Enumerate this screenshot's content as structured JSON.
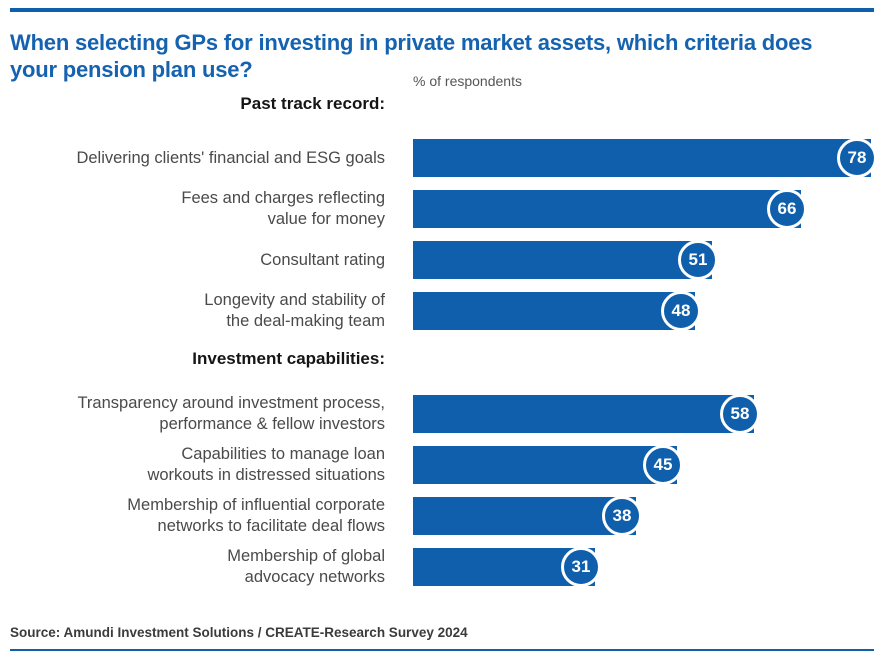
{
  "colors": {
    "accent_blue": "#0f5fac",
    "title_blue": "#1562b0",
    "label_gray": "#4a4a4a",
    "heading_black": "#151515",
    "badge_text": "#ffffff",
    "badge_ring": "#ffffff"
  },
  "chart_data": {
    "type": "bar",
    "orientation": "horizontal",
    "title": "When selecting GPs for investing in private market assets, which criteria does\nyour pension plan use?",
    "value_note": "% of respondents",
    "xlim": [
      0,
      80
    ],
    "grid": false,
    "legend": false,
    "bar_color": "#0f5fac",
    "groups": [
      {
        "heading": "Past track record:",
        "items": [
          {
            "lines": [
              "Delivering clients' financial and ESG goals"
            ],
            "label": "Delivering clients' financial and ESG goals",
            "value": 78
          },
          {
            "lines": [
              "Fees and charges reflecting",
              "value for money"
            ],
            "label": "Fees and charges reflecting value for money",
            "value": 66
          },
          {
            "lines": [
              "Consultant rating"
            ],
            "label": "Consultant rating",
            "value": 51
          },
          {
            "lines": [
              "Longevity and stability of",
              "the deal-making team"
            ],
            "label": "Longevity and stability of the deal-making team",
            "value": 48
          }
        ]
      },
      {
        "heading": "Investment capabilities:",
        "items": [
          {
            "lines": [
              "Transparency around investment process,",
              "performance & fellow investors"
            ],
            "label": "Transparency around investment process, performance & fellow investors",
            "value": 58
          },
          {
            "lines": [
              "Capabilities to manage loan",
              "workouts in distressed situations"
            ],
            "label": "Capabilities to manage loan workouts in distressed situations",
            "value": 45
          },
          {
            "lines": [
              "Membership of influential corporate",
              "networks to facilitate deal flows"
            ],
            "label": "Membership of influential corporate networks to facilitate deal flows",
            "value": 38
          },
          {
            "lines": [
              "Membership of global",
              "advocacy networks"
            ],
            "label": "Membership of global advocacy networks",
            "value": 31
          }
        ]
      }
    ],
    "categories": [
      "Delivering clients' financial and ESG goals",
      "Fees and charges reflecting value for money",
      "Consultant rating",
      "Longevity and stability of the deal-making team",
      "Transparency around investment process, performance & fellow investors",
      "Capabilities to manage loan workouts in distressed situations",
      "Membership of influential corporate networks to facilitate deal flows",
      "Membership of global advocacy networks"
    ],
    "values": [
      78,
      66,
      51,
      48,
      58,
      45,
      38,
      31
    ],
    "source": "Source: Amundi Investment Solutions / CREATE-Research Survey 2024"
  }
}
